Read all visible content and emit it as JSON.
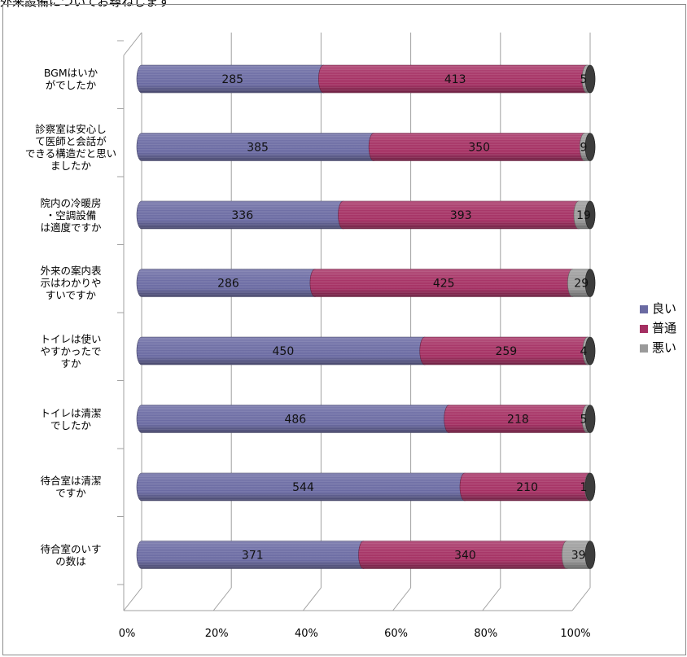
{
  "title_text": "外来設備についてお尋ねします",
  "chart_data": {
    "type": "bar",
    "orientation": "horizontal",
    "stacked": "percent",
    "categories": [
      "BGMはいかがでしたか",
      "診察室は安心して医師と会話ができる構造だと思いましたか",
      "院内の冷暖房・空調設備は適度ですか",
      "外来の案内表示はわかりやすいですか",
      "トイレは使いやすかったですか",
      "トイレは清潔でしたか",
      "待合室は清潔ですか",
      "待合室のいすの数は"
    ],
    "category_lines": [
      [
        "BGMはいか",
        "がでしたか"
      ],
      [
        "診察室は安心し",
        "て医師と会話が",
        "できる構造だと思い",
        "ましたか"
      ],
      [
        "院内の冷暖房",
        "・空調設備",
        "は適度ですか"
      ],
      [
        "外来の案内表",
        "示はわかりや",
        "すいですか"
      ],
      [
        "トイレは使い",
        "やすかったで",
        "すか"
      ],
      [
        "トイレは清潔",
        "でしたか"
      ],
      [
        "待合室は清潔",
        "ですか"
      ],
      [
        "待合室のいす",
        "の数は"
      ]
    ],
    "series": [
      {
        "name": "良い",
        "color": "#6a6aa2",
        "values": [
          285,
          385,
          336,
          286,
          450,
          486,
          544,
          371
        ]
      },
      {
        "name": "普通",
        "color": "#a42f62",
        "values": [
          413,
          350,
          393,
          425,
          259,
          218,
          210,
          340
        ]
      },
      {
        "name": "悪い",
        "color": "#9a9a9a",
        "values": [
          5,
          9,
          19,
          29,
          4,
          5,
          1,
          39
        ]
      }
    ],
    "x_ticks": [
      "0%",
      "20%",
      "40%",
      "60%",
      "80%",
      "100%"
    ],
    "xlim": [
      0,
      100
    ],
    "gridlines": true,
    "data_labels": true,
    "legend_position": "right",
    "style": "3d-cylinder"
  }
}
